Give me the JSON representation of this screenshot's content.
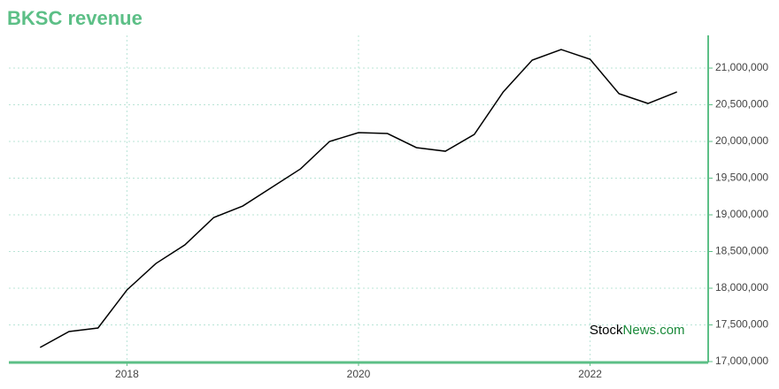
{
  "chart_data": {
    "type": "line",
    "title": "BKSC revenue",
    "watermark": {
      "part1": "Stock",
      "part2": "News.com"
    },
    "x": [
      2017.25,
      2017.5,
      2017.75,
      2018,
      2018.25,
      2018.5,
      2018.75,
      2019,
      2019.25,
      2019.5,
      2019.75,
      2020,
      2020.25,
      2020.5,
      2020.75,
      2021,
      2021.25,
      2021.5,
      2021.75,
      2022,
      2022.25,
      2022.5,
      2022.75
    ],
    "series": [
      {
        "name": "revenue",
        "color": "#000000",
        "values": [
          17193000,
          17410000,
          17458000,
          17976000,
          18337000,
          18590000,
          18964000,
          19120000,
          19373000,
          19627000,
          20000000,
          20120000,
          20108000,
          19916000,
          19867000,
          20096000,
          20675000,
          21108000,
          21253000,
          21120000,
          20651000,
          20518000,
          20675000
        ]
      }
    ],
    "xlim": [
      2016.98,
      2023.02
    ],
    "xticks": [
      2018,
      2020,
      2022
    ],
    "ylim": [
      17000000,
      21446000
    ],
    "yticks": [
      {
        "value": 17000000,
        "label": "17,000,000"
      },
      {
        "value": 17500000,
        "label": "17,500,000"
      },
      {
        "value": 18000000,
        "label": "18,000,000"
      },
      {
        "value": 18500000,
        "label": "18,500,000"
      },
      {
        "value": 19000000,
        "label": "19,000,000"
      },
      {
        "value": 19500000,
        "label": "19,500,000"
      },
      {
        "value": 20000000,
        "label": "20,000,000"
      },
      {
        "value": 20500000,
        "label": "20,500,000"
      },
      {
        "value": 21000000,
        "label": "21,000,000"
      }
    ],
    "grid": true,
    "axis_color": "#5cbf86",
    "watermark_color": "#1a8a3a"
  }
}
